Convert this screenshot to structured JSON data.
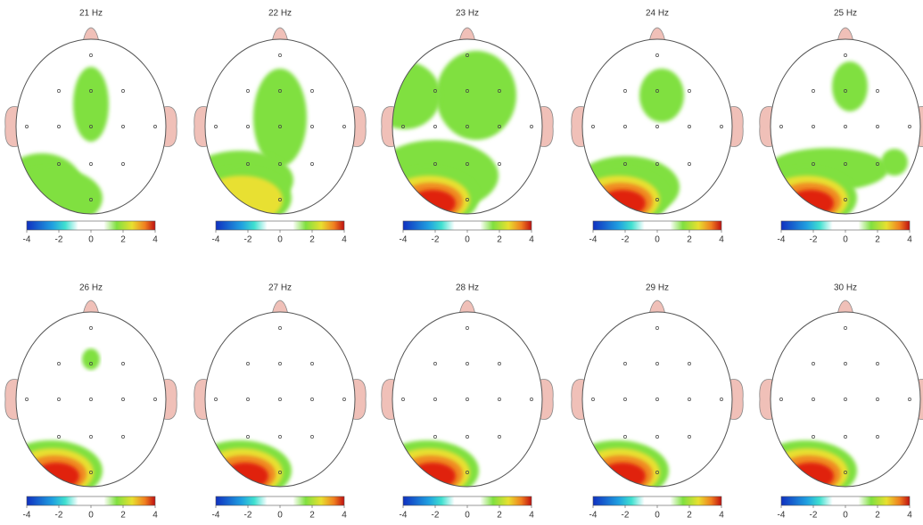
{
  "panels": [
    {
      "title": "21 Hz"
    },
    {
      "title": "22 Hz"
    },
    {
      "title": "23 Hz"
    },
    {
      "title": "24 Hz"
    },
    {
      "title": "25 Hz"
    },
    {
      "title": "26 Hz"
    },
    {
      "title": "27 Hz"
    },
    {
      "title": "28 Hz"
    },
    {
      "title": "29 Hz"
    },
    {
      "title": "30 Hz"
    }
  ],
  "colorbar": {
    "ticks": [
      -4,
      -2,
      0,
      2,
      4
    ]
  }
}
